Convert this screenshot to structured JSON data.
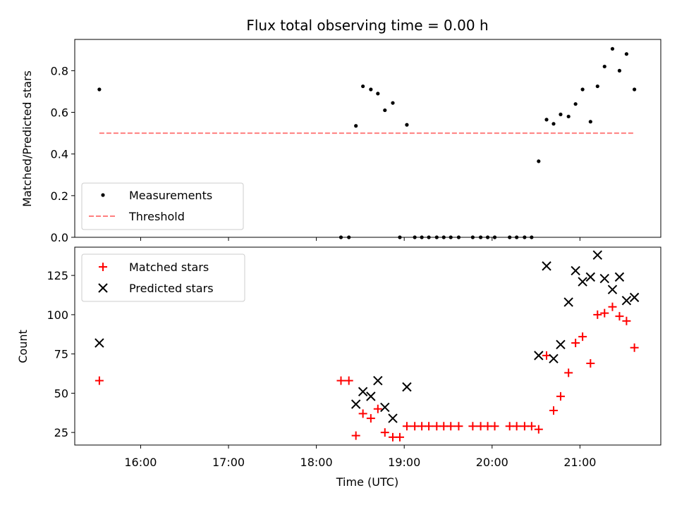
{
  "chart_data": [
    {
      "type": "scatter",
      "title": "Flux total observing time = 0.00 h",
      "xlabel": "",
      "ylabel": "Matched/Predicted stars",
      "xlim": [
        15.25,
        21.92
      ],
      "ylim": [
        0.0,
        0.95
      ],
      "yticks": [
        0.0,
        0.2,
        0.4,
        0.6,
        0.8
      ],
      "ytick_labels": [
        "0.0",
        "0.2",
        "0.4",
        "0.6",
        "0.8"
      ],
      "legend_position": "lower-left",
      "series": [
        {
          "name": "Measurements",
          "color": "#000000",
          "marker": "dot",
          "x": [
            15.53,
            18.28,
            18.37,
            18.45,
            18.53,
            18.62,
            18.7,
            18.78,
            18.87,
            18.95,
            19.03,
            19.12,
            19.2,
            19.28,
            19.37,
            19.45,
            19.53,
            19.62,
            19.78,
            19.87,
            19.95,
            20.03,
            20.2,
            20.28,
            20.37,
            20.45,
            20.53,
            20.62,
            20.7,
            20.78,
            20.87,
            20.95,
            21.03,
            21.12,
            21.2,
            21.28,
            21.37,
            21.45,
            21.53,
            21.62
          ],
          "y": [
            0.71,
            0.0,
            0.0,
            0.535,
            0.725,
            0.71,
            0.69,
            0.61,
            0.645,
            0.0,
            0.54,
            0.0,
            0.0,
            0.0,
            0.0,
            0.0,
            0.0,
            0.0,
            0.0,
            0.0,
            0.0,
            0.0,
            0.0,
            0.0,
            0.0,
            0.0,
            0.365,
            0.565,
            0.545,
            0.59,
            0.58,
            0.64,
            0.71,
            0.555,
            0.725,
            0.82,
            0.905,
            0.8,
            0.88,
            0.71
          ]
        },
        {
          "name": "Threshold",
          "color": "#ff7f7f",
          "style": "dashed",
          "x": [
            15.53,
            21.62
          ],
          "y": [
            0.5,
            0.5
          ]
        }
      ]
    },
    {
      "type": "scatter",
      "title": "",
      "xlabel": "Time (UTC)",
      "ylabel": "Count",
      "xlim": [
        15.25,
        21.92
      ],
      "ylim": [
        17,
        143
      ],
      "yticks": [
        25,
        50,
        75,
        100,
        125
      ],
      "ytick_labels": [
        "25",
        "50",
        "75",
        "100",
        "125"
      ],
      "xticks": [
        16,
        17,
        18,
        19,
        20,
        21
      ],
      "xtick_labels": [
        "16:00",
        "17:00",
        "18:00",
        "19:00",
        "20:00",
        "21:00"
      ],
      "legend_position": "top-left",
      "series": [
        {
          "name": "Matched stars",
          "color": "#ff0000",
          "marker": "plus",
          "x": [
            15.53,
            18.28,
            18.37,
            18.45,
            18.53,
            18.62,
            18.7,
            18.78,
            18.87,
            18.95,
            19.03,
            19.12,
            19.2,
            19.28,
            19.37,
            19.45,
            19.53,
            19.62,
            19.78,
            19.87,
            19.95,
            20.03,
            20.2,
            20.28,
            20.37,
            20.45,
            20.53,
            20.62,
            20.7,
            20.78,
            20.87,
            20.95,
            21.03,
            21.12,
            21.2,
            21.28,
            21.37,
            21.45,
            21.53,
            21.62
          ],
          "y": [
            58,
            58,
            58,
            23,
            37,
            34,
            40,
            25,
            22,
            22,
            29,
            29,
            29,
            29,
            29,
            29,
            29,
            29,
            29,
            29,
            29,
            29,
            29,
            29,
            29,
            29,
            27,
            74,
            39,
            48,
            63,
            82,
            86,
            69,
            100,
            101,
            105,
            99,
            96,
            79
          ]
        },
        {
          "name": "Predicted stars",
          "color": "#000000",
          "marker": "x",
          "x": [
            15.53,
            18.45,
            18.53,
            18.62,
            18.7,
            18.78,
            18.87,
            19.03,
            20.53,
            20.62,
            20.7,
            20.78,
            20.87,
            20.95,
            21.03,
            21.12,
            21.2,
            21.28,
            21.37,
            21.45,
            21.53,
            21.62
          ],
          "y": [
            82,
            43,
            51,
            48,
            58,
            41,
            34,
            54,
            74,
            131,
            72,
            81,
            108,
            128,
            121,
            124,
            138,
            123,
            116,
            124,
            109,
            111
          ]
        }
      ]
    }
  ]
}
